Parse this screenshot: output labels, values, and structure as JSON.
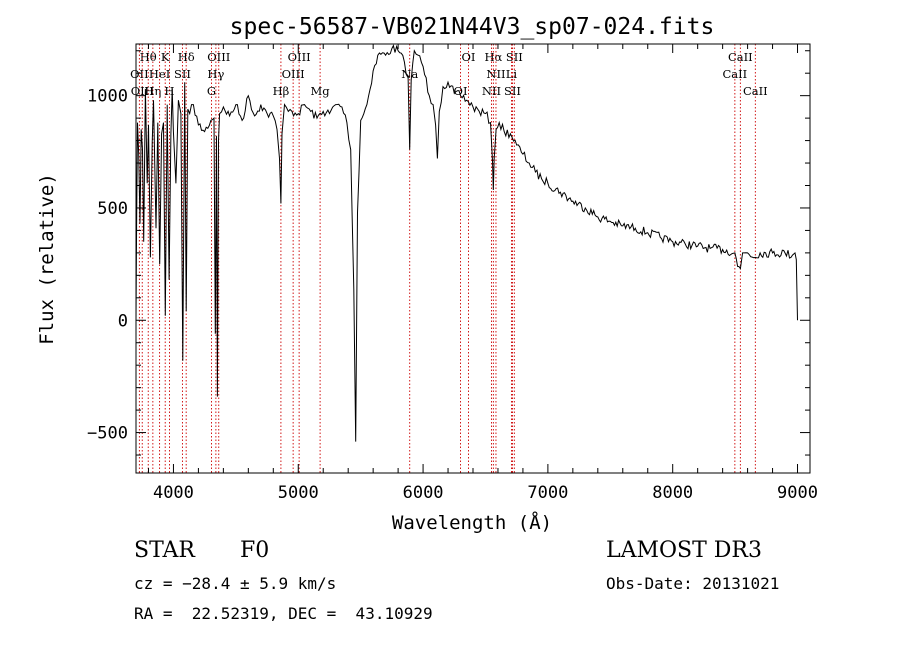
{
  "chart_data": {
    "type": "line",
    "title": "spec-56587-VB021N44V3_sp07-024.fits",
    "xlabel": "Wavelength (Å)",
    "ylabel": "Flux (relative)",
    "xlim": [
      3700,
      9100
    ],
    "ylim": [
      -680,
      1230
    ],
    "xticks": [
      4000,
      5000,
      6000,
      7000,
      8000,
      9000
    ],
    "yticks": [
      -500,
      0,
      500,
      1000
    ],
    "xtick_labels": [
      "4000",
      "5000",
      "6000",
      "7000",
      "8000",
      "9000"
    ],
    "ytick_labels": [
      "−500",
      "0",
      "500",
      "1000"
    ],
    "series": [
      {
        "name": "flux",
        "x": [
          3700,
          3705,
          3712,
          3722,
          3732,
          3742,
          3752,
          3762,
          3775,
          3790,
          3800,
          3815,
          3830,
          3840,
          3860,
          3875,
          3890,
          3905,
          3920,
          3935,
          3950,
          3965,
          3980,
          3990,
          4000,
          4020,
          4040,
          4060,
          4075,
          4090,
          4102,
          4115,
          4130,
          4160,
          4200,
          4250,
          4300,
          4325,
          4335,
          4345,
          4352,
          4361,
          4370,
          4400,
          4450,
          4500,
          4550,
          4600,
          4650,
          4700,
          4750,
          4800,
          4830,
          4850,
          4861,
          4870,
          4890,
          4920,
          4950,
          5000,
          5050,
          5100,
          5150,
          5200,
          5250,
          5300,
          5350,
          5390,
          5420,
          5445,
          5460,
          5475,
          5500,
          5550,
          5600,
          5650,
          5700,
          5750,
          5800,
          5850,
          5880,
          5893,
          5905,
          5930,
          5960,
          6000,
          6050,
          6080,
          6100,
          6115,
          6130,
          6160,
          6200,
          6250,
          6300,
          6350,
          6400,
          6450,
          6500,
          6540,
          6556,
          6563,
          6570,
          6585,
          6610,
          6650,
          6700,
          6750,
          6800,
          6850,
          6900,
          6950,
          7000,
          7100,
          7200,
          7300,
          7400,
          7500,
          7600,
          7700,
          7800,
          7900,
          8000,
          8100,
          8200,
          8300,
          8400,
          8498,
          8520,
          8542,
          8560,
          8600,
          8662,
          8700,
          8800,
          8900,
          8960,
          8980,
          8990,
          9000
        ],
        "y": [
          0,
          420,
          880,
          740,
          430,
          850,
          760,
          350,
          1030,
          610,
          870,
          280,
          790,
          980,
          410,
          880,
          250,
          830,
          880,
          20,
          960,
          180,
          830,
          1030,
          840,
          610,
          980,
          920,
          -180,
          1060,
          40,
          940,
          920,
          960,
          870,
          840,
          890,
          900,
          -60,
          820,
          -340,
          800,
          920,
          950,
          910,
          960,
          890,
          1000,
          910,
          960,
          920,
          910,
          850,
          720,
          520,
          830,
          960,
          930,
          930,
          920,
          960,
          930,
          900,
          930,
          920,
          960,
          950,
          880,
          760,
          140,
          -540,
          480,
          890,
          960,
          1110,
          1190,
          1180,
          1210,
          1200,
          1150,
          1080,
          760,
          1070,
          1200,
          1180,
          1130,
          1000,
          960,
          870,
          720,
          930,
          1040,
          1060,
          1010,
          1000,
          980,
          950,
          930,
          920,
          880,
          710,
          580,
          720,
          850,
          880,
          840,
          830,
          780,
          740,
          700,
          660,
          630,
          610,
          570,
          530,
          500,
          460,
          440,
          420,
          410,
          390,
          370,
          350,
          340,
          330,
          320,
          315,
          300,
          240,
          230,
          300,
          300,
          280,
          300,
          300,
          300,
          290,
          300,
          270,
          0
        ]
      }
    ],
    "line_markers": [
      {
        "label": "Hθ",
        "wl": 3798,
        "row": 1
      },
      {
        "label": "OII",
        "wl": 3727,
        "row": 2
      },
      {
        "label": "OIII",
        "wl": 3750,
        "row": 3
      },
      {
        "label": "Hη",
        "wl": 3835,
        "row": 3
      },
      {
        "label": "K",
        "wl": 3934,
        "row": 1
      },
      {
        "label": "HeI",
        "wl": 3889,
        "row": 2
      },
      {
        "label": "SII",
        "wl": 4072,
        "row": 2
      },
      {
        "label": "H",
        "wl": 3968,
        "row": 3
      },
      {
        "label": "Hδ",
        "wl": 4102,
        "row": 1
      },
      {
        "label": "OIII",
        "wl": 4363,
        "row": 1
      },
      {
        "label": "Hγ",
        "wl": 4340,
        "row": 2
      },
      {
        "label": "G",
        "wl": 4305,
        "row": 3
      },
      {
        "label": "Hβ",
        "wl": 4861,
        "row": 3
      },
      {
        "label": "OIII",
        "wl": 5007,
        "row": 1
      },
      {
        "label": "OIII",
        "wl": 4959,
        "row": 2
      },
      {
        "label": "Mg",
        "wl": 5175,
        "row": 3
      },
      {
        "label": "Na",
        "wl": 5893,
        "row": 2
      },
      {
        "label": "OI",
        "wl": 6364,
        "row": 1
      },
      {
        "label": "OI",
        "wl": 6300,
        "row": 3
      },
      {
        "label": "Hα",
        "wl": 6563,
        "row": 1
      },
      {
        "label": "SII",
        "wl": 6731,
        "row": 1
      },
      {
        "label": "NII",
        "wl": 6584,
        "row": 2
      },
      {
        "label": "Li",
        "wl": 6708,
        "row": 2
      },
      {
        "label": "NII",
        "wl": 6548,
        "row": 3
      },
      {
        "label": "SII",
        "wl": 6716,
        "row": 3
      },
      {
        "label": "CaII",
        "wl": 8542,
        "row": 1
      },
      {
        "label": "CaII",
        "wl": 8498,
        "row": 2
      },
      {
        "label": "CaII",
        "wl": 8662,
        "row": 3
      }
    ]
  },
  "info": {
    "object_type": "STAR",
    "subclass": "F0",
    "cz": "cz = −28.4 ± 5.9 km/s",
    "coords": "RA =  22.52319, DEC =  43.10929",
    "survey": "LAMOST DR3",
    "obs_date": "Obs-Date: 20131021"
  },
  "colors": {
    "line_marker": "#cc0000",
    "curve": "#000000"
  }
}
